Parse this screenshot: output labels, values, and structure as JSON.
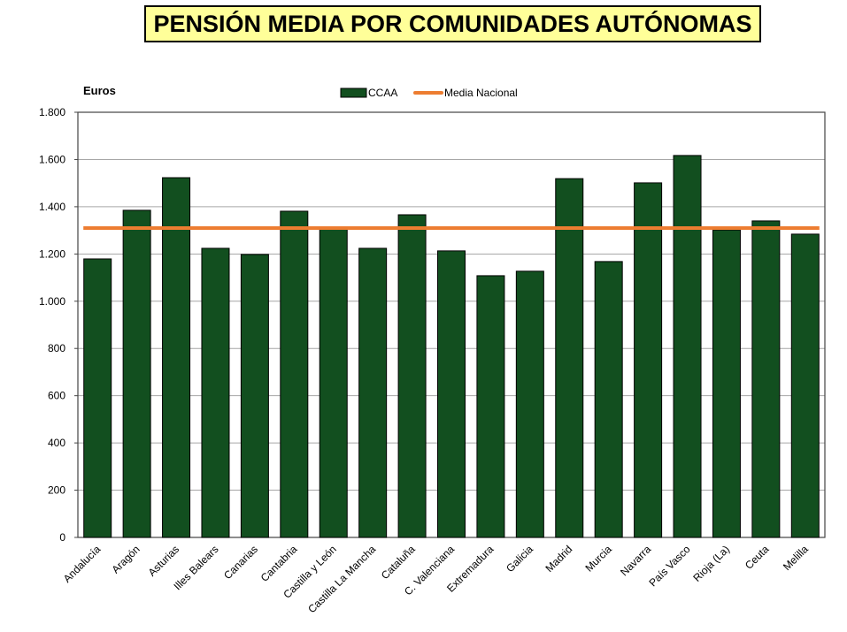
{
  "chart_data": {
    "type": "bar",
    "title": "PENSIÓN MEDIA POR COMUNIDADES AUTÓNOMAS",
    "ylabel": "Euros",
    "xlabel": "",
    "ylim": [
      0,
      1800
    ],
    "yticks": [
      0,
      200,
      400,
      600,
      800,
      1000,
      1200,
      1400,
      1600,
      1800
    ],
    "ytick_labels": [
      "0",
      "200",
      "400",
      "600",
      "800",
      "1.000",
      "1.200",
      "1.400",
      "1.600",
      "1.800"
    ],
    "grid": true,
    "legend": {
      "placement": "top-center",
      "entries": [
        "CCAA",
        "Media Nacional"
      ]
    },
    "categories": [
      "Andalucía",
      "Aragón",
      "Asturias",
      "Illes Balears",
      "Canarias",
      "Cantabria",
      "Castilla y León",
      "Castilla La Mancha",
      "Cataluña",
      "C. Valenciana",
      "Extremadura",
      "Galicia",
      "Madrid",
      "Murcia",
      "Navarra",
      "País Vasco",
      "Rioja (La)",
      "Ceuta",
      "Melilla"
    ],
    "series": [
      {
        "name": "CCAA",
        "type": "bar",
        "color": "#124f1f",
        "values": [
          1179,
          1385,
          1523,
          1224,
          1198,
          1381,
          1314,
          1224,
          1366,
          1213,
          1108,
          1127,
          1519,
          1168,
          1501,
          1617,
          1302,
          1340,
          1284
        ]
      },
      {
        "name": "Media Nacional",
        "type": "line",
        "color": "#ed7d31",
        "value": 1310
      }
    ]
  }
}
